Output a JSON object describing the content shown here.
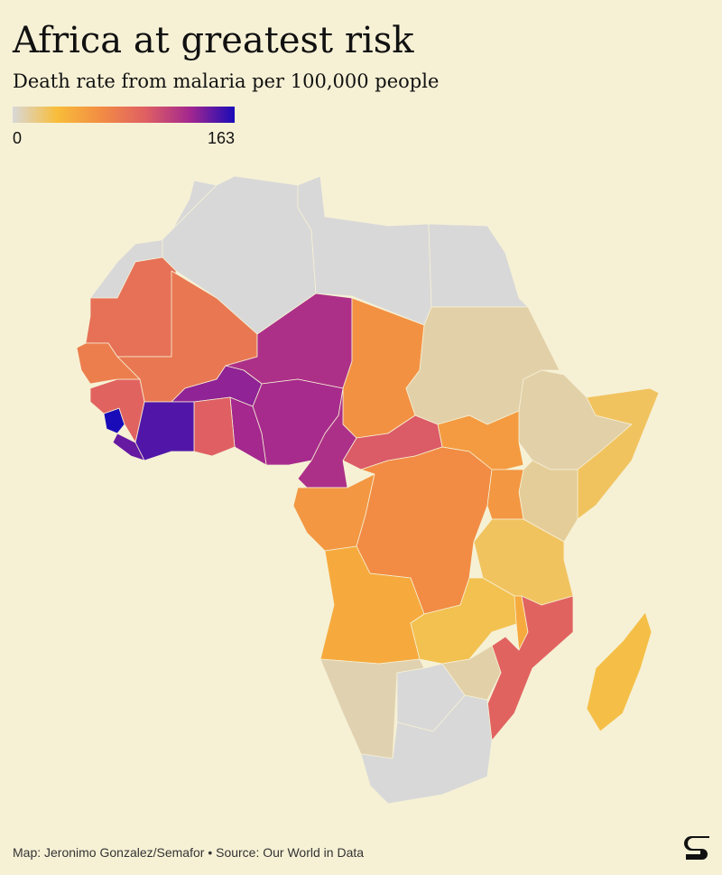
{
  "chart_data": {
    "type": "choropleth",
    "title": "Africa at greatest risk",
    "subtitle": "Death rate from malaria per 100,000 people",
    "colors": [
      "#d8d8d8",
      "#f8bd3a",
      "#f28c44",
      "#df5f63",
      "#a3278f",
      "#1a0bb8"
    ],
    "colorbar_ticks": [
      0,
      163
    ],
    "values": [
      0,
      0,
      0,
      0,
      85,
      80,
      125,
      62,
      10,
      10,
      25,
      13,
      55,
      100,
      125,
      128,
      130,
      135,
      98,
      150,
      145,
      163,
      95,
      75,
      58,
      65,
      58,
      25,
      45,
      28,
      45,
      95,
      10,
      8,
      0,
      0,
      30
    ],
    "footer": "Map: Jeronimo Gonzalez/Semafor • Source: Our World in Data"
  }
}
